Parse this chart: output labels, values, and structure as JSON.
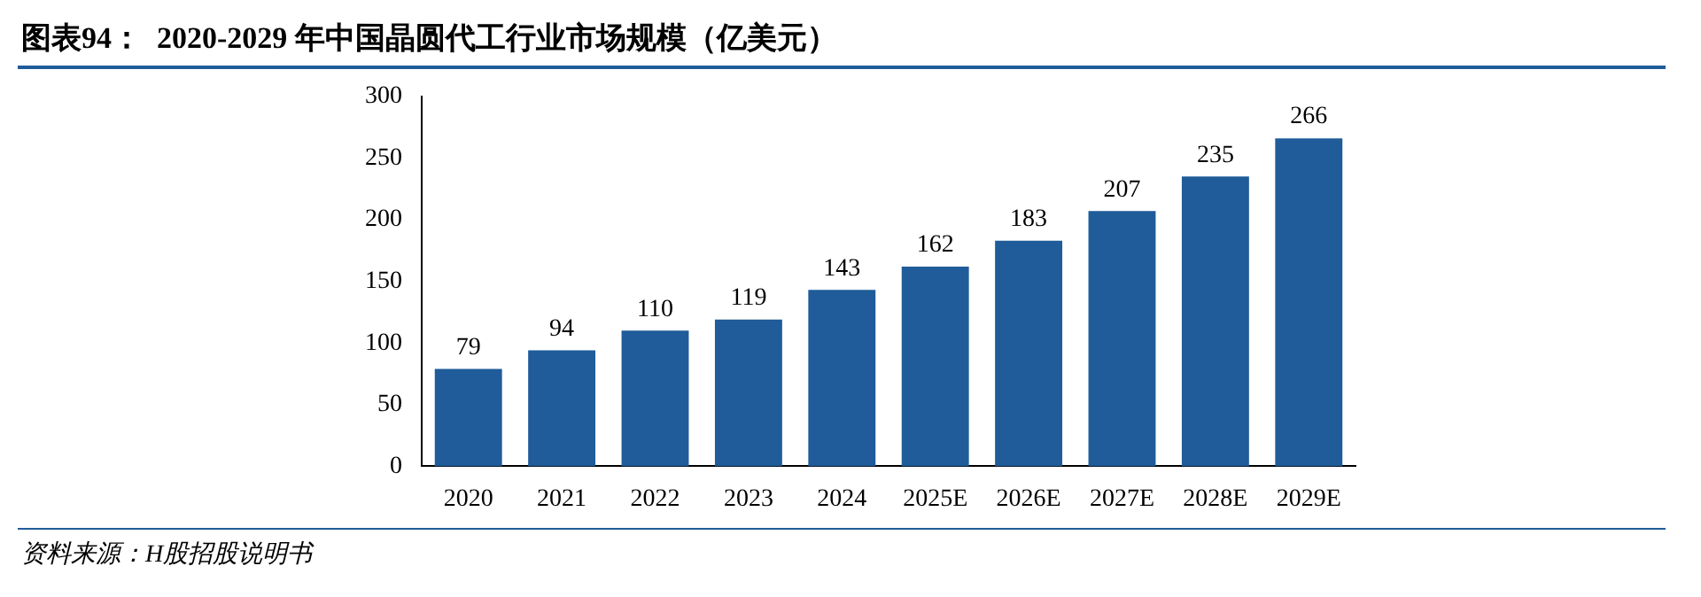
{
  "chart_data": {
    "type": "bar",
    "title": "图表94：  2020-2029 年中国晶圆代工行业市场规模（亿美元）",
    "categories": [
      "2020",
      "2021",
      "2022",
      "2023",
      "2024",
      "2025E",
      "2026E",
      "2027E",
      "2028E",
      "2029E"
    ],
    "values": [
      79,
      94,
      110,
      119,
      143,
      162,
      183,
      207,
      235,
      266
    ],
    "color": "#1f5c99",
    "ylim": [
      0,
      300
    ],
    "yticks": [
      0,
      50,
      100,
      150,
      200,
      250,
      300
    ],
    "grid": false,
    "legend": false,
    "data_labels": true,
    "annotations": [
      "资料来源：H股招股说明书"
    ]
  }
}
